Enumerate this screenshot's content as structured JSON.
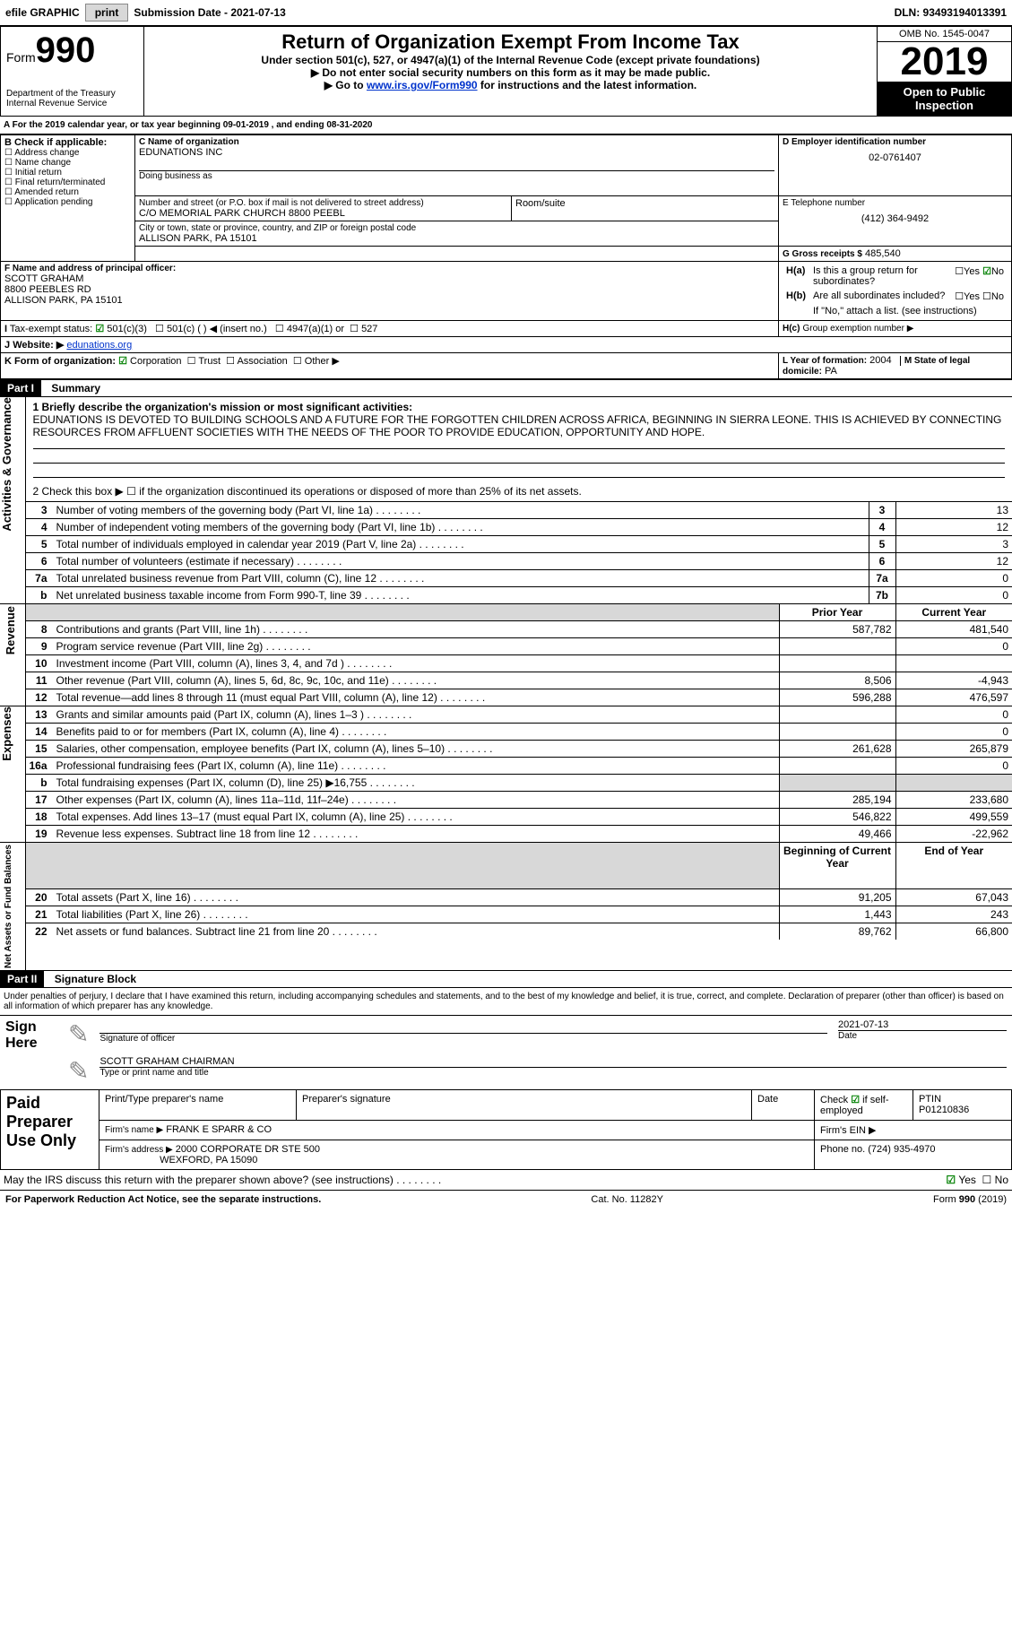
{
  "topbar": {
    "efile_label": "efile GRAPHIC",
    "print_btn": "print",
    "submission_label": "Submission Date - 2021-07-13",
    "dln": "DLN: 93493194013391"
  },
  "header": {
    "form_label": "Form",
    "form_number": "990",
    "dept": "Department of the Treasury\nInternal Revenue Service",
    "title": "Return of Organization Exempt From Income Tax",
    "subtitle": "Under section 501(c), 527, or 4947(a)(1) of the Internal Revenue Code (except private foundations)",
    "note1": "▶ Do not enter social security numbers on this form as it may be made public.",
    "note2_pre": "▶ Go to ",
    "note2_link": "www.irs.gov/Form990",
    "note2_post": " for instructions and the latest information.",
    "omb": "OMB No. 1545-0047",
    "year": "2019",
    "open": "Open to Public Inspection"
  },
  "periodA": "For the 2019 calendar year, or tax year beginning 09-01-2019    , and ending 08-31-2020",
  "boxB": {
    "label": "B Check if applicable:",
    "items": [
      "Address change",
      "Name change",
      "Initial return",
      "Final return/terminated",
      "Amended return",
      "Application pending"
    ]
  },
  "boxC": {
    "label_name": "C Name of organization",
    "org_name": "EDUNATIONS INC",
    "dba_label": "Doing business as",
    "addr_label": "Number and street (or P.O. box if mail is not delivered to street address)",
    "room_label": "Room/suite",
    "addr": "C/O MEMORIAL PARK CHURCH 8800 PEEBL",
    "city_label": "City or town, state or province, country, and ZIP or foreign postal code",
    "city": "ALLISON PARK, PA  15101"
  },
  "boxD": {
    "label": "D Employer identification number",
    "value": "02-0761407"
  },
  "boxE": {
    "label": "E Telephone number",
    "value": "(412) 364-9492"
  },
  "boxG": {
    "label": "G Gross receipts $",
    "value": "485,540"
  },
  "boxF": {
    "label": "F Name and address of principal officer:",
    "name": "SCOTT GRAHAM",
    "addr1": "8800 PEEBLES RD",
    "addr2": "ALLISON PARK, PA  15101"
  },
  "boxH": {
    "a_label": "Is this a group return for subordinates?",
    "b_label": "Are all subordinates included?",
    "note": "If \"No,\" attach a list. (see instructions)",
    "c_label": "Group exemption number ▶"
  },
  "boxI": {
    "label": "Tax-exempt status:",
    "opts": [
      "501(c)(3)",
      "501(c) (  ) ◀ (insert no.)",
      "4947(a)(1) or",
      "527"
    ]
  },
  "boxJ": {
    "label": "Website: ▶",
    "value": "edunations.org"
  },
  "boxK": {
    "label": "K Form of organization:",
    "opts": [
      "Corporation",
      "Trust",
      "Association",
      "Other ▶"
    ]
  },
  "boxL": {
    "label": "L Year of formation:",
    "value": "2004"
  },
  "boxM": {
    "label": "M State of legal domicile:",
    "value": "PA"
  },
  "part1": {
    "hdr": "Part I",
    "title": "Summary",
    "line1_label": "1 Briefly describe the organization's mission or most significant activities:",
    "line1_text": "EDUNATIONS IS DEVOTED TO BUILDING SCHOOLS AND A FUTURE FOR THE FORGOTTEN CHILDREN ACROSS AFRICA, BEGINNING IN SIERRA LEONE. THIS IS ACHIEVED BY CONNECTING RESOURCES FROM AFFLUENT SOCIETIES WITH THE NEEDS OF THE POOR TO PROVIDE EDUCATION, OPPORTUNITY AND HOPE.",
    "line2": "2   Check this box ▶ ☐  if the organization discontinued its operations or disposed of more than 25% of its net assets.",
    "rows_gov": [
      {
        "n": "3",
        "t": "Number of voting members of the governing body (Part VI, line 1a)",
        "l": "3",
        "v": "13"
      },
      {
        "n": "4",
        "t": "Number of independent voting members of the governing body (Part VI, line 1b)",
        "l": "4",
        "v": "12"
      },
      {
        "n": "5",
        "t": "Total number of individuals employed in calendar year 2019 (Part V, line 2a)",
        "l": "5",
        "v": "3"
      },
      {
        "n": "6",
        "t": "Total number of volunteers (estimate if necessary)",
        "l": "6",
        "v": "12"
      },
      {
        "n": "7a",
        "t": "Total unrelated business revenue from Part VIII, column (C), line 12",
        "l": "7a",
        "v": "0"
      },
      {
        "n": "b",
        "t": "Net unrelated business taxable income from Form 990-T, line 39",
        "l": "7b",
        "v": "0"
      }
    ],
    "col_prior": "Prior Year",
    "col_current": "Current Year",
    "rows_rev": [
      {
        "n": "8",
        "t": "Contributions and grants (Part VIII, line 1h)",
        "p": "587,782",
        "c": "481,540"
      },
      {
        "n": "9",
        "t": "Program service revenue (Part VIII, line 2g)",
        "p": "",
        "c": "0"
      },
      {
        "n": "10",
        "t": "Investment income (Part VIII, column (A), lines 3, 4, and 7d )",
        "p": "",
        "c": ""
      },
      {
        "n": "11",
        "t": "Other revenue (Part VIII, column (A), lines 5, 6d, 8c, 9c, 10c, and 11e)",
        "p": "8,506",
        "c": "-4,943"
      },
      {
        "n": "12",
        "t": "Total revenue—add lines 8 through 11 (must equal Part VIII, column (A), line 12)",
        "p": "596,288",
        "c": "476,597"
      }
    ],
    "rows_exp": [
      {
        "n": "13",
        "t": "Grants and similar amounts paid (Part IX, column (A), lines 1–3 )",
        "p": "",
        "c": "0"
      },
      {
        "n": "14",
        "t": "Benefits paid to or for members (Part IX, column (A), line 4)",
        "p": "",
        "c": "0"
      },
      {
        "n": "15",
        "t": "Salaries, other compensation, employee benefits (Part IX, column (A), lines 5–10)",
        "p": "261,628",
        "c": "265,879"
      },
      {
        "n": "16a",
        "t": "Professional fundraising fees (Part IX, column (A), line 11e)",
        "p": "",
        "c": "0"
      },
      {
        "n": "b",
        "t": "Total fundraising expenses (Part IX, column (D), line 25) ▶16,755",
        "p": "shade",
        "c": "shade"
      },
      {
        "n": "17",
        "t": "Other expenses (Part IX, column (A), lines 11a–11d, 11f–24e)",
        "p": "285,194",
        "c": "233,680"
      },
      {
        "n": "18",
        "t": "Total expenses. Add lines 13–17 (must equal Part IX, column (A), line 25)",
        "p": "546,822",
        "c": "499,559"
      },
      {
        "n": "19",
        "t": "Revenue less expenses. Subtract line 18 from line 12",
        "p": "49,466",
        "c": "-22,962"
      }
    ],
    "col_begin": "Beginning of Current Year",
    "col_end": "End of Year",
    "rows_net": [
      {
        "n": "20",
        "t": "Total assets (Part X, line 16)",
        "p": "91,205",
        "c": "67,043"
      },
      {
        "n": "21",
        "t": "Total liabilities (Part X, line 26)",
        "p": "1,443",
        "c": "243"
      },
      {
        "n": "22",
        "t": "Net assets or fund balances. Subtract line 21 from line 20",
        "p": "89,762",
        "c": "66,800"
      }
    ],
    "side_gov": "Activities & Governance",
    "side_rev": "Revenue",
    "side_exp": "Expenses",
    "side_net": "Net Assets or Fund Balances"
  },
  "part2": {
    "hdr": "Part II",
    "title": "Signature Block",
    "decl": "Under penalties of perjury, I declare that I have examined this return, including accompanying schedules and statements, and to the best of my knowledge and belief, it is true, correct, and complete. Declaration of preparer (other than officer) is based on all information of which preparer has any knowledge.",
    "sign_here": "Sign Here",
    "sig_officer": "Signature of officer",
    "sig_date": "2021-07-13",
    "date_label": "Date",
    "officer_name": "SCOTT GRAHAM  CHAIRMAN",
    "officer_label": "Type or print name and title",
    "paid": "Paid Preparer Use Only",
    "prep_name_label": "Print/Type preparer's name",
    "prep_sig_label": "Preparer's signature",
    "prep_date_label": "Date",
    "check_self": "Check ☑ if self-employed",
    "ptin_label": "PTIN",
    "ptin": "P01210836",
    "firm_name_label": "Firm's name    ▶",
    "firm_name": "FRANK E SPARR & CO",
    "firm_ein_label": "Firm's EIN ▶",
    "firm_addr_label": "Firm's address ▶",
    "firm_addr": "2000 CORPORATE DR STE 500",
    "firm_addr2": "WEXFORD, PA  15090",
    "phone_label": "Phone no.",
    "phone": "(724) 935-4970",
    "discuss": "May the IRS discuss this return with the preparer shown above? (see instructions)",
    "yes": "Yes",
    "no": "No"
  },
  "footer": {
    "left": "For Paperwork Reduction Act Notice, see the separate instructions.",
    "mid": "Cat. No. 11282Y",
    "right": "Form 990 (2019)"
  }
}
